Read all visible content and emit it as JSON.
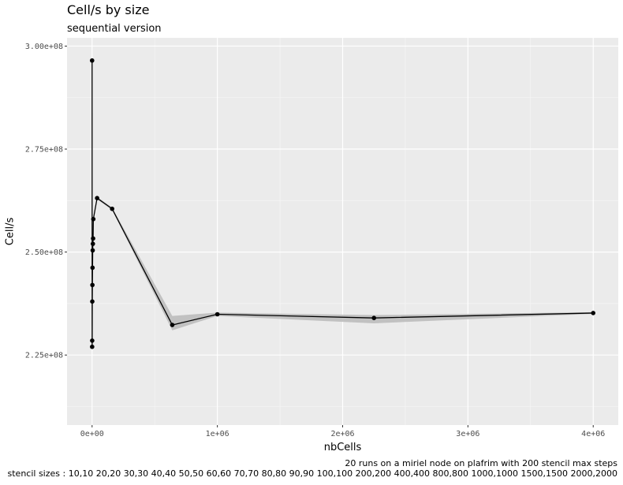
{
  "chart_data": {
    "type": "line",
    "title": "Cell/s by size",
    "subtitle": "sequential version",
    "xlabel": "nbCells",
    "ylabel": "Cell/s",
    "caption_lines": [
      "20 runs on a miriel node on plafrim with 200 stencil max steps",
      "stencil sizes : 10,10 20,20 30,30 40,40 50,50 60,60 70,70 80,80 90,90 100,100 200,200 400,400 800,800 1000,1000 1500,1500 2000,2000"
    ],
    "xlim": [
      -200000,
      4200000
    ],
    "ylim": [
      208000000.0,
      302000000.0
    ],
    "x_ticks": [
      {
        "value": 0,
        "label": "0e+00"
      },
      {
        "value": 1000000,
        "label": "1e+06"
      },
      {
        "value": 2000000,
        "label": "2e+06"
      },
      {
        "value": 3000000,
        "label": "3e+06"
      },
      {
        "value": 4000000,
        "label": "4e+06"
      }
    ],
    "y_ticks": [
      {
        "value": 225000000,
        "label": "2.25e+08"
      },
      {
        "value": 250000000,
        "label": "2.50e+08"
      },
      {
        "value": 275000000,
        "label": "2.75e+08"
      },
      {
        "value": 300000000,
        "label": "3.00e+08"
      }
    ],
    "grid": true,
    "series": [
      {
        "color": "#000000",
        "band_color": "#bdbdbd",
        "points": [
          {
            "x": 100,
            "y": 296500000,
            "ymin": 296000000,
            "ymax": 297000000
          },
          {
            "x": 400,
            "y": 227000000,
            "ymin": 226800000,
            "ymax": 227200000
          },
          {
            "x": 900,
            "y": 228500000,
            "ymin": 228300000,
            "ymax": 228700000
          },
          {
            "x": 1600,
            "y": 238000000,
            "ymin": 237800000,
            "ymax": 238200000
          },
          {
            "x": 2500,
            "y": 242000000,
            "ymin": 241800000,
            "ymax": 242200000
          },
          {
            "x": 3600,
            "y": 246200000,
            "ymin": 246000000,
            "ymax": 246400000
          },
          {
            "x": 4900,
            "y": 250400000,
            "ymin": 250200000,
            "ymax": 250600000
          },
          {
            "x": 6400,
            "y": 252000000,
            "ymin": 251800000,
            "ymax": 252200000
          },
          {
            "x": 8100,
            "y": 253300000,
            "ymin": 253100000,
            "ymax": 253500000
          },
          {
            "x": 10000,
            "y": 258000000,
            "ymin": 257700000,
            "ymax": 258300000
          },
          {
            "x": 40000,
            "y": 263100000,
            "ymin": 262800000,
            "ymax": 263400000
          },
          {
            "x": 160000,
            "y": 260500000,
            "ymin": 260200000,
            "ymax": 260800000
          },
          {
            "x": 640000,
            "y": 232300000,
            "ymin": 231000000,
            "ymax": 234500000
          },
          {
            "x": 1000000,
            "y": 234900000,
            "ymin": 234500000,
            "ymax": 235300000
          },
          {
            "x": 2250000,
            "y": 234000000,
            "ymin": 232700000,
            "ymax": 234700000
          },
          {
            "x": 4000000,
            "y": 235200000,
            "ymin": 235000000,
            "ymax": 235400000
          }
        ]
      }
    ]
  }
}
